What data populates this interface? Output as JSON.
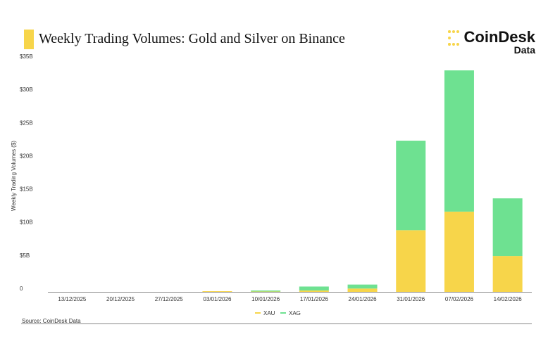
{
  "header": {
    "title": "Weekly Trading Volumes: Gold and Silver on Binance",
    "logo_brand": "CoinDesk",
    "logo_sub": "Data"
  },
  "source": "Source: CoinDesk Data",
  "colors": {
    "XAU": "#f7d54a",
    "XAG": "#6ee191",
    "accent": "#f7d54a"
  },
  "chart_data": {
    "type": "bar",
    "stacked": true,
    "title": "Weekly Trading Volumes: Gold and Silver on Binance",
    "xlabel": "",
    "ylabel": "Weekly Trading Volumes ($)",
    "ylim": [
      0,
      35
    ],
    "yticks": [
      {
        "v": 0,
        "label": "0"
      },
      {
        "v": 5,
        "label": "$5B"
      },
      {
        "v": 10,
        "label": "$10B"
      },
      {
        "v": 15,
        "label": "$15B"
      },
      {
        "v": 20,
        "label": "$20B"
      },
      {
        "v": 25,
        "label": "$25B"
      },
      {
        "v": 30,
        "label": "$30B"
      },
      {
        "v": 35,
        "label": "$35B"
      }
    ],
    "categories": [
      "13/12/2025",
      "20/12/2025",
      "27/12/2025",
      "03/01/2026",
      "10/01/2026",
      "17/01/2026",
      "24/01/2026",
      "31/01/2026",
      "07/02/2026",
      "14/02/2026"
    ],
    "series": [
      {
        "name": "XAU",
        "values": [
          0,
          0,
          0,
          0.1,
          0.05,
          0.2,
          0.5,
          9.3,
          12.1,
          5.4
        ]
      },
      {
        "name": "XAG",
        "values": [
          0,
          0,
          0,
          0,
          0.15,
          0.6,
          0.6,
          13.5,
          21.3,
          8.7
        ]
      }
    ],
    "legend": "bottom-center",
    "grid": false
  }
}
